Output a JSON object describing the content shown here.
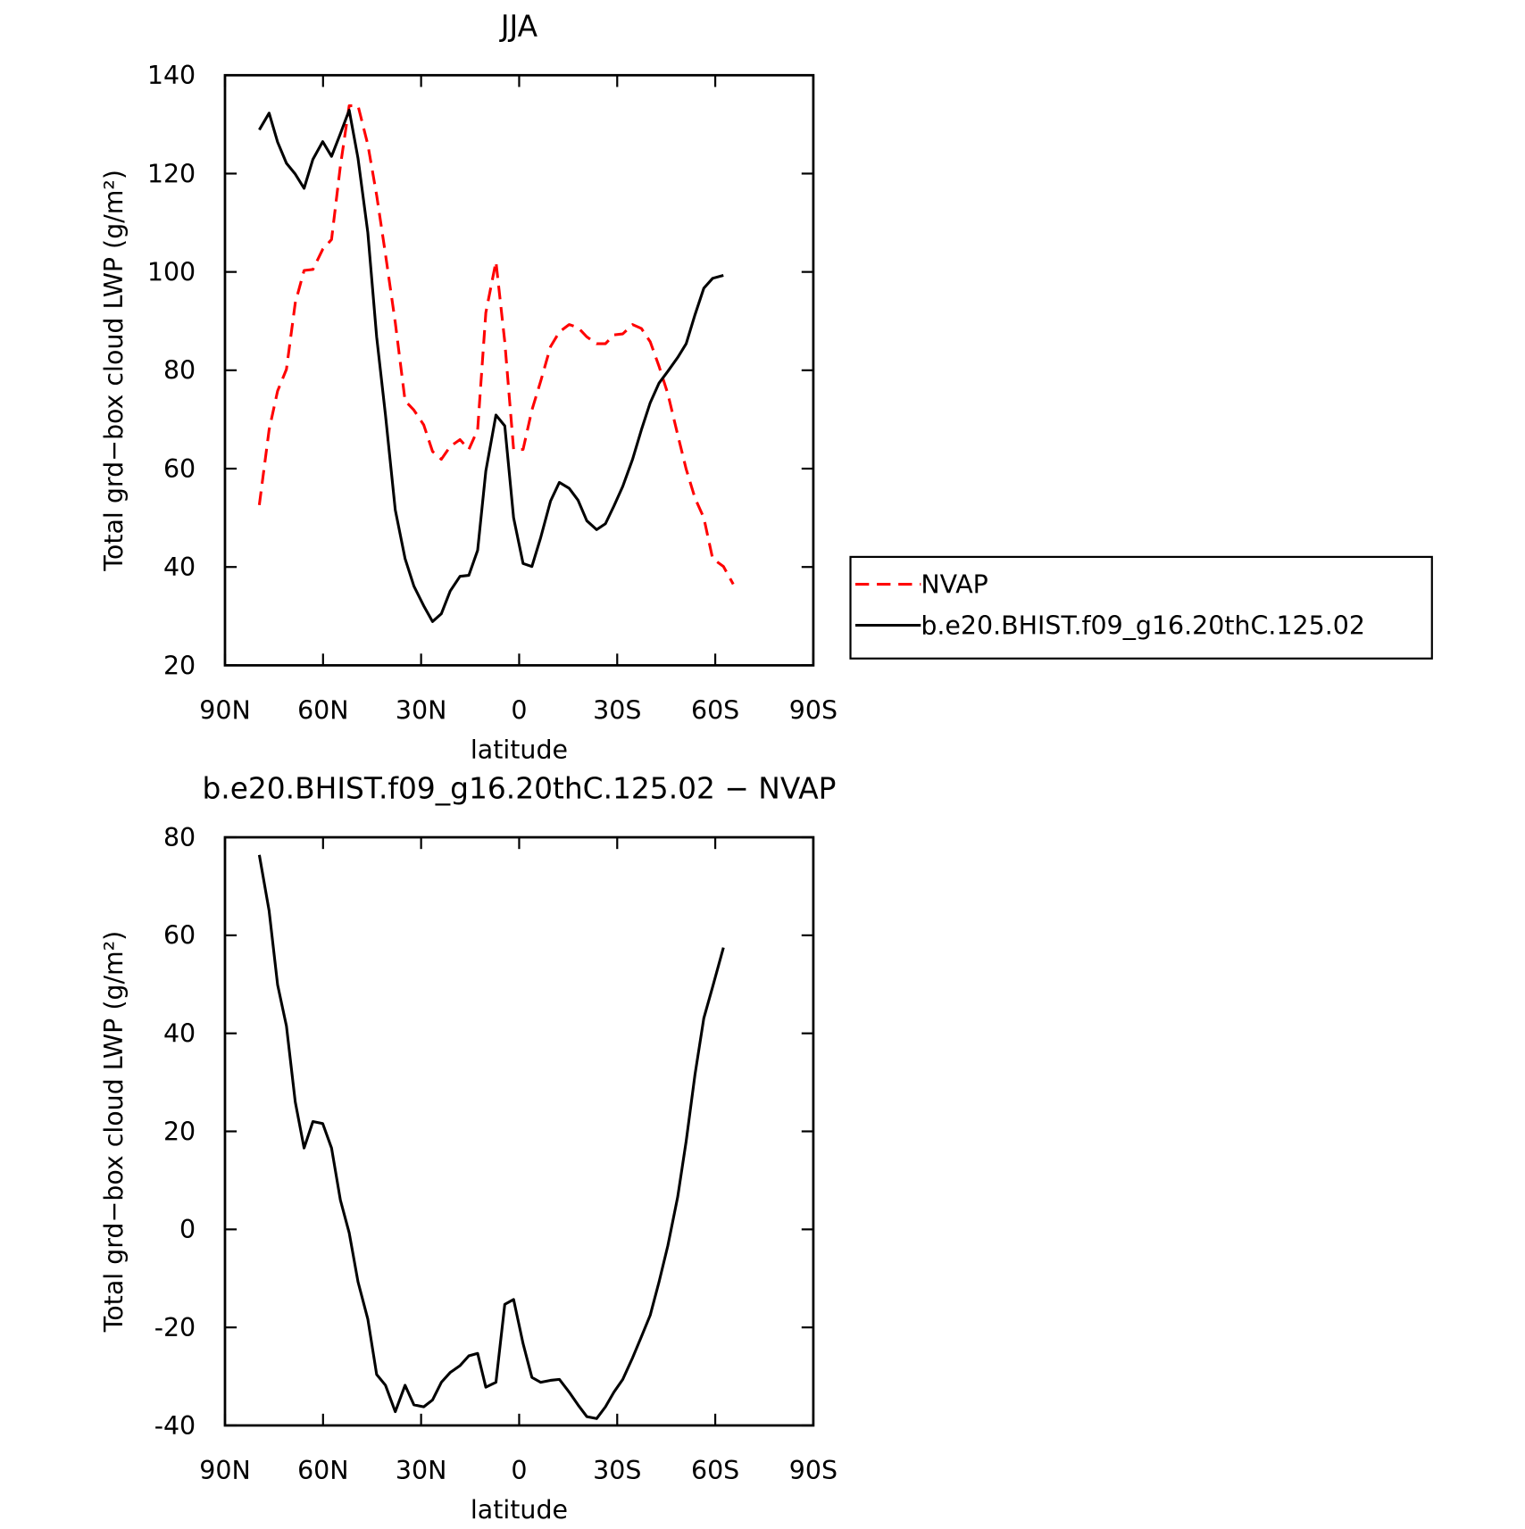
{
  "chart_data": [
    {
      "type": "line",
      "title": "JJA",
      "xlabel": "latitude",
      "ylabel": "Total grd−box cloud LWP (g/m²)",
      "x": [
        79.5,
        76.5,
        73.9,
        71.2,
        68.5,
        65.8,
        63.1,
        60.1,
        57.4,
        54.7,
        52.0,
        49.3,
        46.3,
        43.6,
        40.9,
        37.9,
        34.9,
        32.2,
        29.2,
        26.5,
        23.8,
        21.1,
        18.1,
        15.4,
        12.7,
        10.2,
        7.1,
        4.4,
        1.7,
        -1.2,
        -3.9,
        -6.6,
        -9.6,
        -12.3,
        -15.3,
        -18.0,
        -20.7,
        -23.7,
        -26.4,
        -29.0,
        -31.7,
        -34.7,
        -37.4,
        -40.1,
        -42.8,
        -45.5,
        -48.5,
        -51.1,
        -53.8,
        -56.5,
        -59.2,
        -62.5,
        -65.5
      ],
      "series": [
        {
          "name": "NVAP",
          "color": "#ff0000",
          "line_style": "dashed",
          "values": [
            52.6,
            67.9,
            75.8,
            80.2,
            93.7,
            100.3,
            100.5,
            104.6,
            106.6,
            121.5,
            133.8,
            133.8,
            125.9,
            115.6,
            103.6,
            89.7,
            73.8,
            71.9,
            68.9,
            63.5,
            61.9,
            64.5,
            65.9,
            63.9,
            67.9,
            91.7,
            102.1,
            85.8,
            63.9,
            63.9,
            71.9,
            77.8,
            84.8,
            87.8,
            89.3,
            88.7,
            86.8,
            85.4,
            85.4,
            87.2,
            87.4,
            89.3,
            88.5,
            85.8,
            80.8,
            75.2,
            66.9,
            59.9,
            54.0,
            50.0,
            41.7,
            40.1,
            36.5
          ]
        },
        {
          "name": "b.e20.BHIST.f09_g16.20thC.125.02",
          "color": "#000000",
          "line_style": "solid",
          "values": [
            128.9,
            132.3,
            126.4,
            122.1,
            119.9,
            117.0,
            122.9,
            126.5,
            123.5,
            128.1,
            132.9,
            123.1,
            108.0,
            86.8,
            70.9,
            51.6,
            41.7,
            36.1,
            32.1,
            28.9,
            30.5,
            35.1,
            38.1,
            38.3,
            43.4,
            59.5,
            70.9,
            68.7,
            50.0,
            40.7,
            40.1,
            46.0,
            53.4,
            57.2,
            56.0,
            53.6,
            49.4,
            47.6,
            48.8,
            52.4,
            56.4,
            61.9,
            67.9,
            73.4,
            77.4,
            79.8,
            82.6,
            85.4,
            91.3,
            96.7,
            98.7,
            99.3,
            null
          ]
        }
      ],
      "xlim": [
        90,
        -90
      ],
      "xticks": [
        {
          "value": 90,
          "label": "90N"
        },
        {
          "value": 60,
          "label": "60N"
        },
        {
          "value": 30,
          "label": "30N"
        },
        0,
        {
          "value": -30,
          "label": "30S"
        },
        {
          "value": -60,
          "label": "60S"
        },
        {
          "value": -90,
          "label": "90S"
        }
      ],
      "ylim": [
        20,
        140
      ],
      "yticks": [
        20,
        40,
        60,
        80,
        100,
        120,
        140
      ],
      "legend": "right"
    },
    {
      "type": "line",
      "title": "b.e20.BHIST.f09_g16.20thC.125.02 − NVAP",
      "xlabel": "latitude",
      "ylabel": "Total grd−box cloud LWP (g/m²)",
      "x": [
        79.5,
        76.5,
        73.9,
        71.2,
        68.5,
        65.8,
        63.1,
        60.1,
        57.4,
        54.7,
        52.0,
        49.3,
        46.3,
        43.6,
        40.9,
        37.9,
        34.9,
        32.2,
        29.2,
        26.5,
        23.8,
        21.1,
        18.1,
        15.4,
        12.7,
        10.2,
        7.1,
        4.4,
        1.7,
        -1.2,
        -3.9,
        -6.6,
        -9.6,
        -12.3,
        -15.3,
        -18.0,
        -20.7,
        -23.7,
        -26.4,
        -29.0,
        -31.7,
        -34.7,
        -37.4,
        -40.1,
        -42.8,
        -45.5,
        -48.5,
        -51.1,
        -53.8,
        -56.5,
        -59.2,
        -62.5
      ],
      "series": [
        {
          "color": "#000000",
          "line_style": "solid",
          "values": [
            76.4,
            65.0,
            49.9,
            41.5,
            26.0,
            16.6,
            22.0,
            21.6,
            16.6,
            6.0,
            -0.7,
            -10.7,
            -18.3,
            -29.6,
            -31.8,
            -37.2,
            -31.8,
            -35.8,
            -36.2,
            -34.8,
            -31.2,
            -29.2,
            -27.8,
            -25.8,
            -25.3,
            -32.2,
            -31.2,
            -15.3,
            -14.3,
            -23.3,
            -30.2,
            -31.2,
            -30.8,
            -30.6,
            -33.2,
            -35.8,
            -38.2,
            -38.6,
            -36.2,
            -33.2,
            -30.6,
            -26.2,
            -21.9,
            -17.5,
            -10.7,
            -3.3,
            6.6,
            18.0,
            31.6,
            43.1,
            49.5,
            57.5
          ]
        }
      ],
      "xlim": [
        90,
        -90
      ],
      "xticks": [
        {
          "value": 90,
          "label": "90N"
        },
        {
          "value": 60,
          "label": "60N"
        },
        {
          "value": 30,
          "label": "30N"
        },
        0,
        {
          "value": -30,
          "label": "30S"
        },
        {
          "value": -60,
          "label": "60S"
        },
        {
          "value": -90,
          "label": "90S"
        }
      ],
      "ylim": [
        -40,
        80
      ],
      "yticks": [
        -40,
        -20,
        0,
        20,
        40,
        60,
        80
      ]
    }
  ]
}
